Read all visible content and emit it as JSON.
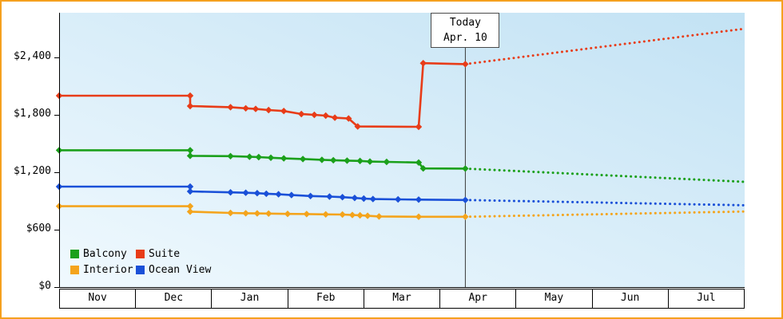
{
  "frame": {
    "border_color": "#f5a01e"
  },
  "chart_data": {
    "type": "line",
    "title": "",
    "x_unit": "month_index_from_nov",
    "x_axis": {
      "months": [
        "Nov",
        "Dec",
        "Jan",
        "Feb",
        "Mar",
        "Apr",
        "May",
        "Jun",
        "Jul"
      ]
    },
    "y_axis": {
      "ticks": [
        0,
        600,
        1200,
        1800,
        2400
      ],
      "tick_labels": [
        "$0",
        "$600",
        "$1,200",
        "$1,800",
        "$2,400"
      ],
      "max_value": 2866
    },
    "today": {
      "line1": "Today",
      "line2": "Apr. 10",
      "x_month": 5.333
    },
    "legend_order": [
      "Balcony",
      "Suite",
      "Interior",
      "Ocean View"
    ],
    "series": [
      {
        "name": "Interior",
        "color": "#f4a41c",
        "solid": [
          [
            0,
            845
          ],
          [
            1.72,
            845
          ],
          [
            1.72,
            788
          ],
          [
            2.25,
            775
          ],
          [
            2.45,
            772
          ],
          [
            2.6,
            770
          ],
          [
            2.75,
            768
          ],
          [
            3.0,
            765
          ],
          [
            3.25,
            763
          ],
          [
            3.5,
            760
          ],
          [
            3.72,
            758
          ],
          [
            3.85,
            753
          ],
          [
            3.95,
            750
          ],
          [
            4.05,
            745
          ],
          [
            4.2,
            738
          ],
          [
            4.72,
            735
          ],
          [
            5.333,
            735
          ]
        ],
        "projection": [
          [
            5.333,
            735
          ],
          [
            9,
            790
          ]
        ]
      },
      {
        "name": "Ocean View",
        "color": "#1a50d8",
        "solid": [
          [
            0,
            1050
          ],
          [
            1.72,
            1050
          ],
          [
            1.72,
            1000
          ],
          [
            2.25,
            990
          ],
          [
            2.45,
            986
          ],
          [
            2.6,
            982
          ],
          [
            2.72,
            976
          ],
          [
            2.88,
            970
          ],
          [
            3.05,
            962
          ],
          [
            3.3,
            952
          ],
          [
            3.55,
            946
          ],
          [
            3.72,
            940
          ],
          [
            3.88,
            932
          ],
          [
            4.0,
            925
          ],
          [
            4.12,
            920
          ],
          [
            4.45,
            917
          ],
          [
            4.72,
            914
          ],
          [
            5.333,
            910
          ]
        ],
        "projection": [
          [
            5.333,
            910
          ],
          [
            9,
            855
          ]
        ]
      },
      {
        "name": "Balcony",
        "color": "#1ba01b",
        "solid": [
          [
            0,
            1430
          ],
          [
            1.72,
            1430
          ],
          [
            1.72,
            1372
          ],
          [
            2.25,
            1368
          ],
          [
            2.5,
            1362
          ],
          [
            2.62,
            1358
          ],
          [
            2.78,
            1352
          ],
          [
            2.95,
            1345
          ],
          [
            3.2,
            1338
          ],
          [
            3.45,
            1330
          ],
          [
            3.6,
            1326
          ],
          [
            3.78,
            1322
          ],
          [
            3.95,
            1318
          ],
          [
            4.08,
            1312
          ],
          [
            4.3,
            1308
          ],
          [
            4.72,
            1302
          ],
          [
            4.78,
            1240
          ],
          [
            5.333,
            1238
          ]
        ],
        "projection": [
          [
            5.333,
            1238
          ],
          [
            9,
            1100
          ]
        ]
      },
      {
        "name": "Suite",
        "color": "#e83c18",
        "solid": [
          [
            0,
            2000
          ],
          [
            1.72,
            2000
          ],
          [
            1.72,
            1892
          ],
          [
            2.25,
            1880
          ],
          [
            2.45,
            1868
          ],
          [
            2.58,
            1862
          ],
          [
            2.75,
            1850
          ],
          [
            2.95,
            1840
          ],
          [
            3.18,
            1808
          ],
          [
            3.35,
            1800
          ],
          [
            3.5,
            1792
          ],
          [
            3.62,
            1770
          ],
          [
            3.8,
            1762
          ],
          [
            3.92,
            1678
          ],
          [
            4.72,
            1675
          ],
          [
            4.78,
            2340
          ],
          [
            5.333,
            2330
          ]
        ],
        "projection": [
          [
            5.333,
            2330
          ],
          [
            9,
            2700
          ]
        ]
      }
    ],
    "background_gradient": [
      "#f0f9fe",
      "#c2e2f4"
    ]
  }
}
